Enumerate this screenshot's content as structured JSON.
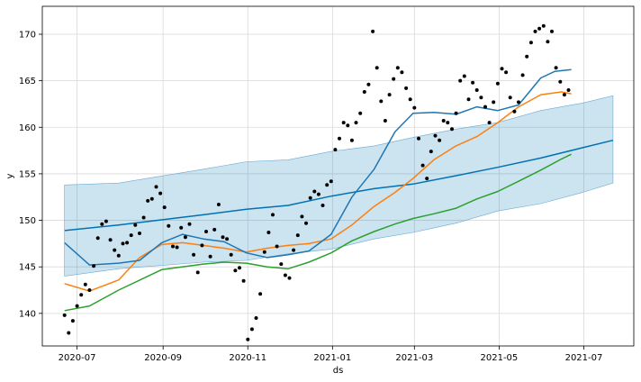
{
  "chart_data": {
    "type": "line",
    "xlabel": "ds",
    "ylabel": "y",
    "xlim": [
      "2020-06-06",
      "2021-08-06"
    ],
    "ylim": [
      136.5,
      173
    ],
    "grid": true,
    "x_ticks": [
      {
        "date": "2020-07-01",
        "label": "2020-07"
      },
      {
        "date": "2020-09-01",
        "label": "2020-09"
      },
      {
        "date": "2020-11-01",
        "label": "2020-11"
      },
      {
        "date": "2021-01-01",
        "label": "2021-01"
      },
      {
        "date": "2021-03-01",
        "label": "2021-03"
      },
      {
        "date": "2021-05-01",
        "label": "2021-05"
      },
      {
        "date": "2021-07-01",
        "label": "2021-07"
      }
    ],
    "y_ticks": [
      140,
      145,
      150,
      155,
      160,
      165,
      170
    ],
    "colors": {
      "observed": "#000000",
      "forecast": "#0072B2",
      "uncertainty": "#0072B2",
      "series_orange": "#ff7f0e",
      "series_green": "#2ca02c",
      "series_blue": "#1f77b4"
    },
    "uncertainty_band": {
      "x": [
        "2020-06-22",
        "2020-07-31",
        "2020-09-30",
        "2020-10-31",
        "2020-11-30",
        "2020-12-31",
        "2021-01-31",
        "2021-02-28",
        "2021-03-31",
        "2021-04-30",
        "2021-05-31",
        "2021-06-30",
        "2021-07-22"
      ],
      "lower": [
        144.0,
        144.8,
        145.5,
        145.7,
        146.4,
        146.9,
        148.0,
        148.7,
        149.7,
        151.0,
        151.8,
        153.0,
        154.0
      ],
      "upper": [
        153.8,
        154.0,
        155.5,
        156.3,
        156.5,
        157.4,
        158.0,
        158.9,
        159.8,
        160.5,
        161.8,
        162.6,
        163.4
      ]
    },
    "series": [
      {
        "x": [
          "2020-06-22",
          "2020-07-31",
          "2020-09-30",
          "2020-10-31",
          "2020-11-30",
          "2020-12-31",
          "2021-01-31",
          "2021-02-28",
          "2021-03-31",
          "2021-04-30",
          "2021-05-31",
          "2021-06-30",
          "2021-07-22"
        ],
        "values": [
          148.9,
          149.5,
          150.6,
          151.2,
          151.6,
          152.6,
          153.4,
          153.9,
          154.8,
          155.7,
          156.7,
          157.8,
          158.6
        ]
      },
      {
        "x": [
          "2020-06-22",
          "2020-07-10",
          "2020-07-31",
          "2020-08-31",
          "2020-09-30",
          "2020-10-15",
          "2020-10-31",
          "2020-11-15",
          "2020-11-30",
          "2020-12-15",
          "2020-12-31",
          "2021-01-15",
          "2021-01-31",
          "2021-02-15",
          "2021-02-28",
          "2021-03-15",
          "2021-03-31",
          "2021-04-15",
          "2021-04-30",
          "2021-05-15",
          "2021-05-31",
          "2021-06-15",
          "2021-06-22"
        ],
        "values": [
          140.3,
          140.8,
          142.5,
          144.7,
          145.3,
          145.5,
          145.4,
          145.0,
          144.8,
          145.5,
          146.5,
          147.8,
          148.8,
          149.6,
          150.2,
          150.7,
          151.3,
          152.3,
          153.1,
          154.2,
          155.4,
          156.6,
          157.1
        ]
      },
      {
        "x": [
          "2020-06-22",
          "2020-07-10",
          "2020-07-31",
          "2020-08-15",
          "2020-08-31",
          "2020-09-15",
          "2020-09-30",
          "2020-10-15",
          "2020-10-31",
          "2020-11-15",
          "2020-11-30",
          "2020-12-15",
          "2020-12-31",
          "2021-01-15",
          "2021-01-31",
          "2021-02-15",
          "2021-02-28",
          "2021-03-15",
          "2021-03-31",
          "2021-04-15",
          "2021-04-30",
          "2021-05-15",
          "2021-05-31",
          "2021-06-15",
          "2021-06-22"
        ],
        "values": [
          143.2,
          142.4,
          143.6,
          146.0,
          147.4,
          147.6,
          147.3,
          147.0,
          146.6,
          147.0,
          147.3,
          147.5,
          148.0,
          149.5,
          151.5,
          153.0,
          154.5,
          156.5,
          158.0,
          159.0,
          160.5,
          162.2,
          163.5,
          163.8,
          163.6
        ]
      },
      {
        "x": [
          "2020-06-22",
          "2020-07-10",
          "2020-07-31",
          "2020-08-15",
          "2020-08-31",
          "2020-09-15",
          "2020-09-30",
          "2020-10-15",
          "2020-10-31",
          "2020-11-15",
          "2020-11-30",
          "2020-12-15",
          "2020-12-31",
          "2021-01-15",
          "2021-01-31",
          "2021-02-15",
          "2021-02-28",
          "2021-03-15",
          "2021-03-31",
          "2021-04-15",
          "2021-04-30",
          "2021-05-15",
          "2021-05-31",
          "2021-06-10",
          "2021-06-22"
        ],
        "values": [
          147.6,
          145.2,
          145.4,
          145.7,
          147.6,
          148.5,
          148.0,
          147.7,
          146.5,
          146.0,
          146.3,
          146.7,
          148.5,
          152.5,
          155.5,
          159.5,
          161.5,
          161.6,
          161.4,
          162.2,
          161.8,
          162.4,
          165.3,
          166.0,
          166.2
        ]
      }
    ],
    "observed": {
      "x": [
        "2020-06-22",
        "2020-06-25",
        "2020-06-28",
        "2020-07-01",
        "2020-07-04",
        "2020-07-07",
        "2020-07-10",
        "2020-07-13",
        "2020-07-16",
        "2020-07-19",
        "2020-07-22",
        "2020-07-25",
        "2020-07-28",
        "2020-07-31",
        "2020-08-03",
        "2020-08-06",
        "2020-08-09",
        "2020-08-12",
        "2020-08-15",
        "2020-08-18",
        "2020-08-21",
        "2020-08-24",
        "2020-08-27",
        "2020-08-30",
        "2020-09-02",
        "2020-09-05",
        "2020-09-08",
        "2020-09-11",
        "2020-09-14",
        "2020-09-17",
        "2020-09-20",
        "2020-09-23",
        "2020-09-26",
        "2020-09-29",
        "2020-10-02",
        "2020-10-05",
        "2020-10-08",
        "2020-10-11",
        "2020-10-14",
        "2020-10-17",
        "2020-10-20",
        "2020-10-23",
        "2020-10-26",
        "2020-10-29",
        "2020-11-01",
        "2020-11-04",
        "2020-11-07",
        "2020-11-10",
        "2020-11-13",
        "2020-11-16",
        "2020-11-19",
        "2020-11-22",
        "2020-11-25",
        "2020-11-28",
        "2020-12-01",
        "2020-12-04",
        "2020-12-07",
        "2020-12-10",
        "2020-12-13",
        "2020-12-16",
        "2020-12-19",
        "2020-12-22",
        "2020-12-25",
        "2020-12-28",
        "2020-12-31",
        "2021-01-03",
        "2021-01-06",
        "2021-01-09",
        "2021-01-12",
        "2021-01-15",
        "2021-01-18",
        "2021-01-21",
        "2021-01-24",
        "2021-01-27",
        "2021-01-30",
        "2021-02-02",
        "2021-02-05",
        "2021-02-08",
        "2021-02-11",
        "2021-02-14",
        "2021-02-17",
        "2021-02-20",
        "2021-02-23",
        "2021-02-26",
        "2021-03-01",
        "2021-03-04",
        "2021-03-07",
        "2021-03-10",
        "2021-03-13",
        "2021-03-16",
        "2021-03-19",
        "2021-03-22",
        "2021-03-25",
        "2021-03-28",
        "2021-03-31",
        "2021-04-03",
        "2021-04-06",
        "2021-04-09",
        "2021-04-12",
        "2021-04-15",
        "2021-04-18",
        "2021-04-21",
        "2021-04-24",
        "2021-04-27",
        "2021-04-30",
        "2021-05-03",
        "2021-05-06",
        "2021-05-09",
        "2021-05-12",
        "2021-05-15",
        "2021-05-18",
        "2021-05-21",
        "2021-05-24",
        "2021-05-27",
        "2021-05-30",
        "2021-06-02",
        "2021-06-05",
        "2021-06-08",
        "2021-06-11",
        "2021-06-14",
        "2021-06-17",
        "2021-06-20"
      ],
      "values": [
        139.8,
        137.9,
        139.2,
        140.8,
        142.0,
        143.1,
        142.5,
        145.1,
        148.1,
        149.6,
        149.9,
        147.9,
        146.8,
        146.2,
        147.5,
        147.6,
        148.4,
        149.5,
        148.6,
        150.3,
        152.1,
        152.3,
        153.6,
        152.9,
        151.4,
        149.4,
        147.2,
        147.1,
        149.2,
        148.2,
        149.6,
        146.3,
        144.4,
        147.3,
        148.8,
        146.1,
        149.0,
        151.7,
        148.2,
        148.0,
        146.3,
        144.6,
        144.9,
        143.5,
        137.2,
        138.3,
        139.5,
        142.1,
        146.6,
        148.7,
        150.6,
        147.2,
        145.3,
        144.1,
        143.8,
        146.8,
        148.4,
        150.4,
        149.7,
        152.4,
        153.1,
        152.8,
        151.6,
        153.8,
        154.2,
        157.6,
        158.8,
        160.5,
        160.2,
        158.6,
        160.5,
        161.5,
        163.8,
        164.6,
        170.3,
        166.4,
        162.8,
        160.7,
        163.5,
        165.2,
        166.4,
        165.9,
        164.2,
        163.0,
        162.1,
        158.8,
        155.9,
        154.5,
        157.4,
        159.1,
        158.6,
        160.7,
        160.5,
        159.8,
        161.5,
        165.0,
        165.5,
        163.0,
        164.8,
        164.0,
        163.2,
        162.2,
        160.5,
        162.7,
        164.7,
        166.3,
        165.9,
        163.2,
        161.7,
        162.7,
        165.6,
        167.6,
        169.1,
        170.3,
        170.6,
        170.9,
        169.2,
        170.3,
        166.4,
        164.9,
        163.5,
        164.0
      ]
    }
  }
}
